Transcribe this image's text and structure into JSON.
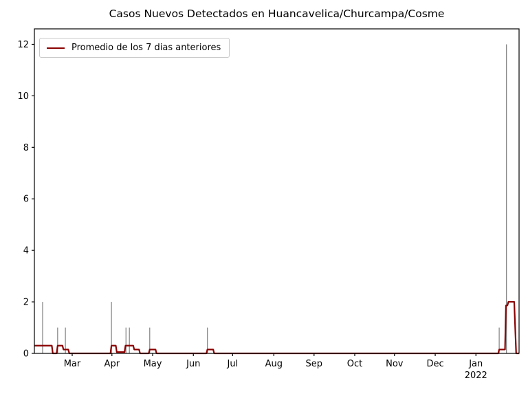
{
  "chart_data": {
    "type": "line",
    "title": "Casos Nuevos Detectados en Huancavelica/Churcampa/Cosme",
    "legend_label": "Promedio de los 7 dias anteriores",
    "legend_position": "upper-left",
    "grid": false,
    "y_ticks": [
      0,
      2,
      4,
      6,
      8,
      10,
      12
    ],
    "y_axis_max": 12.6,
    "x_ticks": [
      {
        "label": "Mar",
        "x": 0.078
      },
      {
        "label": "Apr",
        "x": 0.16
      },
      {
        "label": "May",
        "x": 0.244
      },
      {
        "label": "Jun",
        "x": 0.328
      },
      {
        "label": "Jul",
        "x": 0.409
      },
      {
        "label": "Aug",
        "x": 0.494
      },
      {
        "label": "Sep",
        "x": 0.577
      },
      {
        "label": "Oct",
        "x": 0.661
      },
      {
        "label": "Nov",
        "x": 0.743
      },
      {
        "label": "Dec",
        "x": 0.827
      },
      {
        "label": "Jan",
        "x": 0.911
      }
    ],
    "x_year_label": {
      "label": "2022",
      "x": 0.911
    },
    "daily_case_spikes": [
      {
        "x": 0.017,
        "value": 2
      },
      {
        "x": 0.048,
        "value": 1
      },
      {
        "x": 0.064,
        "value": 1
      },
      {
        "x": 0.159,
        "value": 2
      },
      {
        "x": 0.189,
        "value": 1
      },
      {
        "x": 0.196,
        "value": 1
      },
      {
        "x": 0.238,
        "value": 1
      },
      {
        "x": 0.357,
        "value": 1
      },
      {
        "x": 0.959,
        "value": 1
      },
      {
        "x": 0.974,
        "value": 12
      }
    ],
    "avg_line_points": [
      [
        0.0,
        0.3
      ],
      [
        0.036,
        0.3
      ],
      [
        0.038,
        0.0
      ],
      [
        0.046,
        0.0
      ],
      [
        0.048,
        0.3
      ],
      [
        0.058,
        0.3
      ],
      [
        0.06,
        0.15
      ],
      [
        0.07,
        0.15
      ],
      [
        0.072,
        0.0
      ],
      [
        0.157,
        0.0
      ],
      [
        0.159,
        0.3
      ],
      [
        0.168,
        0.3
      ],
      [
        0.17,
        0.05
      ],
      [
        0.186,
        0.05
      ],
      [
        0.188,
        0.3
      ],
      [
        0.204,
        0.3
      ],
      [
        0.206,
        0.15
      ],
      [
        0.216,
        0.15
      ],
      [
        0.218,
        0.0
      ],
      [
        0.236,
        0.0
      ],
      [
        0.238,
        0.15
      ],
      [
        0.25,
        0.15
      ],
      [
        0.252,
        0.0
      ],
      [
        0.355,
        0.0
      ],
      [
        0.357,
        0.15
      ],
      [
        0.369,
        0.15
      ],
      [
        0.371,
        0.0
      ],
      [
        0.957,
        0.0
      ],
      [
        0.959,
        0.15
      ],
      [
        0.971,
        0.15
      ],
      [
        0.973,
        1.86
      ],
      [
        0.976,
        1.86
      ],
      [
        0.978,
        2.0
      ],
      [
        0.99,
        2.0
      ],
      [
        0.994,
        0.0
      ],
      [
        1.0,
        0.0
      ]
    ],
    "colors": {
      "avg_line": "#8b0000",
      "spike": "#808080",
      "axis": "#000000",
      "background": "#ffffff"
    }
  }
}
